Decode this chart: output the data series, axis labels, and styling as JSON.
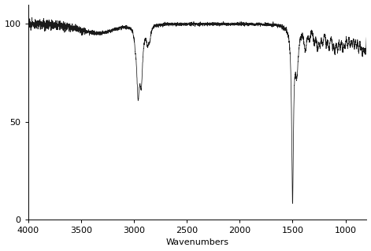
{
  "xmin": 800,
  "xmax": 4000,
  "ymin": 0,
  "ymax": 110,
  "xlabel": "Wavenumbers",
  "xticks": [
    4000,
    3500,
    3000,
    2500,
    2000,
    1500,
    1000
  ],
  "yticks": [
    0,
    50,
    100
  ],
  "line_color": "#1a1a1a",
  "background_color": "#ffffff",
  "noise_seed": 42
}
